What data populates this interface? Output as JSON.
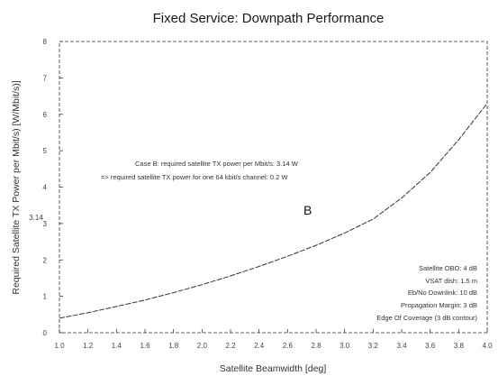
{
  "chart_data": {
    "type": "line",
    "title": "Fixed Service: Downpath Performance",
    "xlabel": "Satellite Beamwidth [deg]",
    "ylabel": "Required Satellite TX Power per Mbit/s) [W/Mbit/s)]",
    "xlim": [
      1.0,
      4.0
    ],
    "ylim": [
      0,
      8
    ],
    "x_ticks": [
      "1.0",
      "1.2",
      "1.4",
      "1.6",
      "1.8",
      "2.0",
      "2.2",
      "2.4",
      "2.6",
      "2.8",
      "3.0",
      "3.2",
      "3.4",
      "3.6",
      "3.8",
      "4.0"
    ],
    "y_ticks": [
      "0",
      "1",
      "2",
      "3",
      "4",
      "5",
      "6",
      "7",
      "8"
    ],
    "y_marker_label": "3.14",
    "series": [
      {
        "name": "B",
        "x": [
          1.0,
          1.2,
          1.4,
          1.6,
          1.8,
          2.0,
          2.2,
          2.4,
          2.6,
          2.8,
          3.0,
          3.2,
          3.4,
          3.6,
          3.8,
          4.0
        ],
        "y": [
          0.4,
          0.55,
          0.72,
          0.9,
          1.1,
          1.32,
          1.56,
          1.82,
          2.1,
          2.4,
          2.74,
          3.12,
          3.7,
          4.4,
          5.3,
          6.3
        ]
      }
    ],
    "annotations": {
      "case_b_line1": "Case B: required satellite TX power per Mbit/s: 3.14 W",
      "case_b_line2": "=> required satellite TX power for one 64 kbit/s channel: 0.2 W",
      "curve_label": "B"
    },
    "parameters": [
      "Satellite OBO: 4 dB",
      "VSAT dish: 1.5 m",
      "Eb/No Downlink: 10 dB",
      "Propagation Margin: 3 dB",
      "Edge Of Coverage (3 dB contour)"
    ],
    "grid": false
  }
}
